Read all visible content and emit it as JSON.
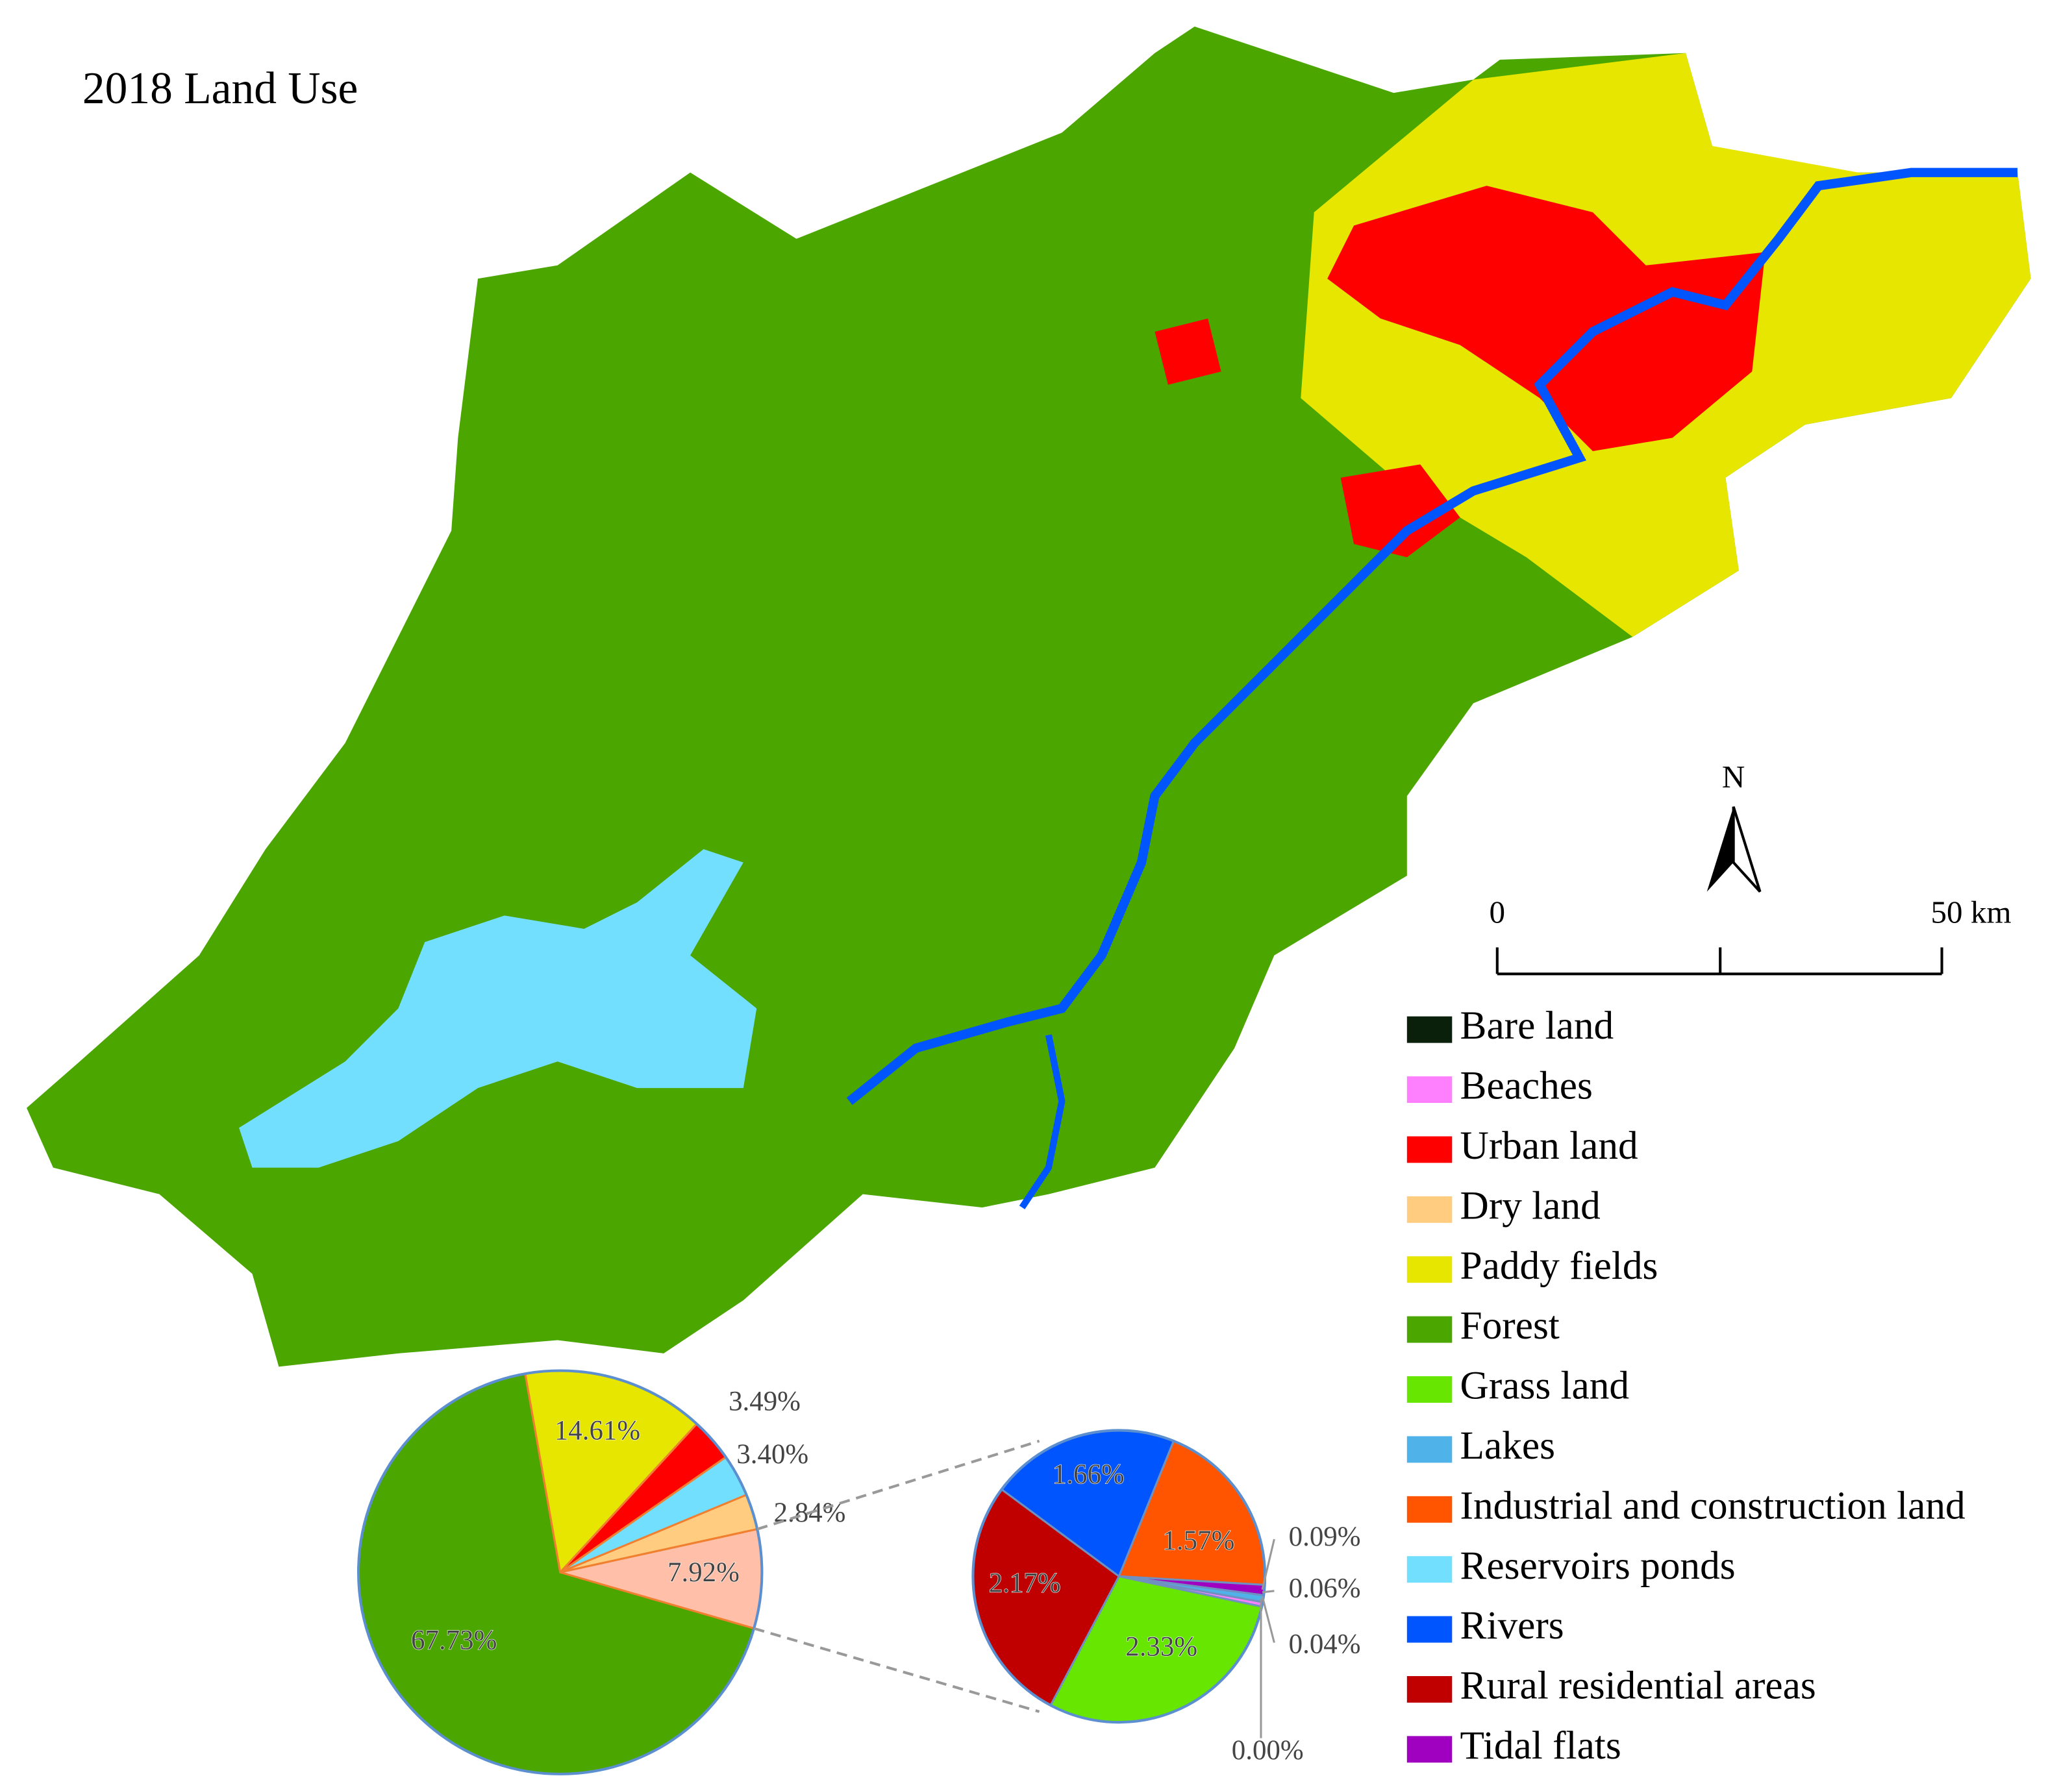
{
  "title": "2018 Land Use",
  "north": "N",
  "scale_bar": {
    "labels": [
      "0",
      "50 km"
    ]
  },
  "legend": [
    {
      "label": "Bare land",
      "color": "#0b200b"
    },
    {
      "label": "Beaches",
      "color": "#ff80ff"
    },
    {
      "label": "Urban land",
      "color": "#ff0000"
    },
    {
      "label": "Dry land",
      "color": "#ffcc80"
    },
    {
      "label": "Paddy fields",
      "color": "#e6e600"
    },
    {
      "label": "Forest",
      "color": "#4ca600"
    },
    {
      "label": "Grass land",
      "color": "#66e600"
    },
    {
      "label": "Lakes",
      "color": "#4fb3ea"
    },
    {
      "label": "Industrial and construction land",
      "color": "#ff5500"
    },
    {
      "label": "Reservoirs ponds",
      "color": "#73dfff"
    },
    {
      "label": "Rivers",
      "color": "#0055ff"
    },
    {
      "label": "Rural residential areas",
      "color": "#c00000"
    },
    {
      "label": "Tidal flats",
      "color": "#a000c0"
    }
  ],
  "chart_data": [
    {
      "type": "pie",
      "values": [
        14.61,
        3.49,
        3.4,
        2.84,
        7.92,
        67.73
      ],
      "value_labels": [
        "14.61%",
        "3.49%",
        "3.40%",
        "2.84%",
        "7.92%",
        "67.73%"
      ],
      "colors": [
        "#e6e600",
        "#ff0000",
        "#73dfff",
        "#ffcc80",
        "#ffbfa8",
        "#4ca600"
      ]
    },
    {
      "type": "pie",
      "values": [
        1.57,
        0.09,
        0.06,
        0.04,
        0.0,
        2.33,
        2.17,
        1.66
      ],
      "value_labels": [
        "1.57%",
        "0.09%",
        "0.06%",
        "0.04%",
        "0.00%",
        "2.33%",
        "2.17%",
        "1.66%"
      ],
      "colors": [
        "#ff5500",
        "#a000c0",
        "#4fb3ea",
        "#ff80ff",
        "#0b200b",
        "#66e600",
        "#c00000",
        "#0055ff"
      ]
    }
  ]
}
